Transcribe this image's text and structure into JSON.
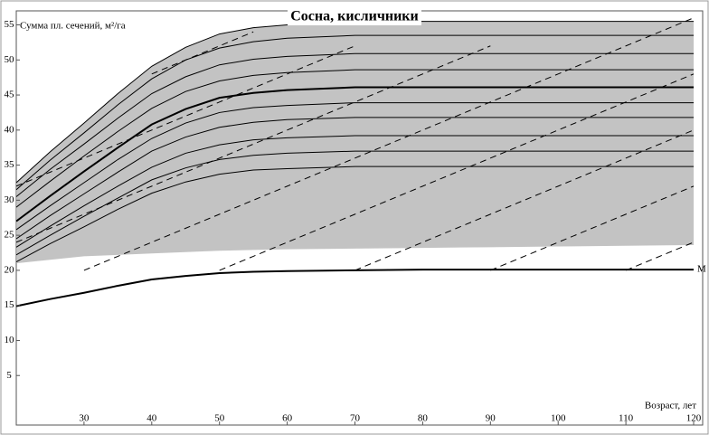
{
  "chart_data": {
    "type": "line",
    "title": "Сосна, кисличники",
    "y_label": "Сумма пл. сечений, м²/га",
    "x_label": "Возраст, лет",
    "x": [
      20,
      25,
      30,
      35,
      40,
      45,
      50,
      55,
      60,
      70,
      80,
      90,
      100,
      110,
      120
    ],
    "xlim": [
      20,
      121
    ],
    "xticks": [
      30,
      40,
      50,
      60,
      70,
      80,
      90,
      100,
      110,
      120
    ],
    "ylim": [
      0,
      57
    ],
    "yticks": [
      5,
      10,
      15,
      20,
      25,
      30,
      35,
      40,
      45,
      50,
      55
    ],
    "band": {
      "color": "#b9b9b9",
      "upper": [
        32.5,
        36.9,
        41.0,
        45.2,
        49.1,
        51.8,
        53.7,
        54.6,
        55.0,
        55.5,
        55.5,
        55.5,
        55.5,
        55.5,
        55.5
      ],
      "lower": [
        21,
        21.5,
        22,
        22.2,
        22.4,
        22.6,
        22.8,
        22.9,
        23,
        23.1,
        23.2,
        23.3,
        23.4,
        23.5,
        23.6
      ]
    },
    "series": [
      {
        "color": "#000000",
        "values": [
          32.5,
          36.9,
          41.0,
          45.2,
          49.1,
          51.8,
          53.7,
          54.6,
          55.0,
          55.5,
          55.5,
          55.5,
          55.5,
          55.5,
          55.5
        ]
      },
      {
        "color": "#000000",
        "values": [
          31.5,
          35.7,
          39.6,
          43.6,
          47.3,
          50.0,
          51.7,
          52.6,
          53.1,
          53.5,
          53.5,
          53.5,
          53.5,
          53.5,
          53.5
        ]
      },
      {
        "color": "#000000",
        "values": [
          30.5,
          34.4,
          38.0,
          41.7,
          45.2,
          47.6,
          49.3,
          50.1,
          50.5,
          50.9,
          50.9,
          50.9,
          50.9,
          50.9,
          50.9
        ]
      },
      {
        "color": "#000000",
        "values": [
          29,
          32.7,
          36.3,
          39.8,
          43.1,
          45.5,
          47.0,
          47.8,
          48.2,
          48.6,
          48.6,
          48.6,
          48.6,
          48.6,
          48.6
        ]
      },
      {
        "color": "#000000",
        "width": 2,
        "values": [
          27,
          30.6,
          34.1,
          37.5,
          40.8,
          43.0,
          44.6,
          45.3,
          45.7,
          46.1,
          46.1,
          46.1,
          46.1,
          46.1,
          46.1
        ]
      },
      {
        "color": "#000000",
        "values": [
          25.8,
          29.2,
          32.5,
          35.8,
          38.8,
          41.0,
          42.5,
          43.2,
          43.5,
          43.9,
          43.9,
          43.9,
          43.9,
          43.9,
          43.9
        ]
      },
      {
        "color": "#000000",
        "values": [
          24.5,
          27.8,
          30.9,
          34.0,
          37.0,
          39.0,
          40.4,
          41.1,
          41.5,
          41.8,
          41.8,
          41.8,
          41.8,
          41.8,
          41.8
        ]
      },
      {
        "color": "#000000",
        "values": [
          23.3,
          26.3,
          29.2,
          32.0,
          34.7,
          36.7,
          37.9,
          38.6,
          38.9,
          39.2,
          39.2,
          39.2,
          39.2,
          39.2,
          39.2
        ]
      },
      {
        "color": "#000000",
        "values": [
          22.2,
          25.0,
          27.7,
          30.3,
          32.9,
          34.6,
          35.8,
          36.4,
          36.7,
          37.0,
          37.0,
          37.0,
          37.0,
          37.0,
          37.0
        ]
      },
      {
        "color": "#000000",
        "values": [
          21.2,
          23.8,
          26.2,
          28.7,
          31.0,
          32.6,
          33.7,
          34.3,
          34.5,
          34.8,
          34.8,
          34.8,
          34.8,
          34.8,
          34.8
        ]
      },
      {
        "name": "M",
        "color": "#000000",
        "width": 2,
        "values": [
          14.9,
          15.9,
          16.8,
          17.8,
          18.7,
          19.2,
          19.6,
          19.8,
          19.9,
          20,
          20.1,
          20.1,
          20.1,
          20.1,
          20.1
        ]
      },
      {
        "color": "#000000",
        "dash": true,
        "values": [
          null,
          null,
          null,
          null,
          null,
          null,
          null,
          null,
          null,
          null,
          null,
          null,
          null,
          20,
          24
        ]
      },
      {
        "color": "#000000",
        "dash": true,
        "values": [
          null,
          null,
          null,
          null,
          null,
          null,
          null,
          null,
          null,
          null,
          null,
          20,
          24,
          28,
          32
        ]
      },
      {
        "color": "#000000",
        "dash": true,
        "values": [
          null,
          null,
          null,
          null,
          null,
          null,
          null,
          null,
          null,
          20,
          24,
          28,
          32,
          36,
          40
        ]
      },
      {
        "color": "#000000",
        "dash": true,
        "values": [
          null,
          null,
          null,
          null,
          null,
          null,
          20,
          22,
          24,
          28,
          32,
          36,
          40,
          44,
          48
        ]
      },
      {
        "color": "#000000",
        "dash": true,
        "values": [
          null,
          null,
          20,
          22,
          24,
          26,
          28,
          30,
          32,
          36,
          40,
          44,
          48,
          52,
          56
        ]
      },
      {
        "color": "#000000",
        "dash": true,
        "values": [
          24,
          26,
          28,
          30,
          32,
          34,
          36,
          38,
          40,
          44,
          48,
          52,
          null,
          null,
          null
        ]
      },
      {
        "color": "#000000",
        "dash": true,
        "values": [
          32,
          34,
          36,
          38,
          40,
          42,
          44,
          46,
          48,
          52,
          null,
          null,
          null,
          null,
          null
        ]
      },
      {
        "color": "#000000",
        "dash": true,
        "values": [
          null,
          null,
          null,
          null,
          48,
          50,
          52,
          54,
          null,
          null,
          null,
          null,
          null,
          null,
          null
        ]
      }
    ]
  }
}
